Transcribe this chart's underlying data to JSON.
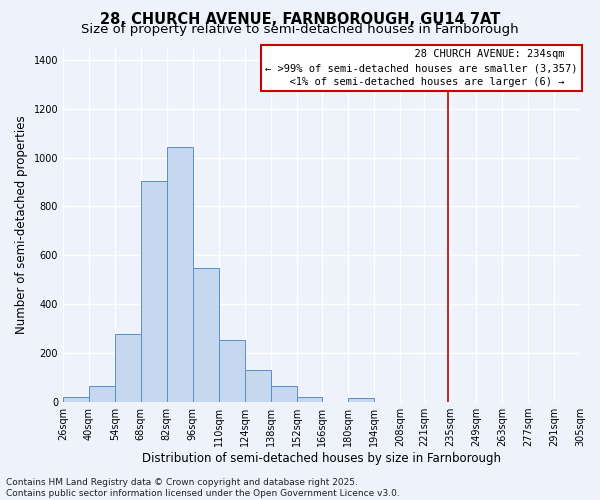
{
  "title_line1": "28, CHURCH AVENUE, FARNBOROUGH, GU14 7AT",
  "title_line2": "Size of property relative to semi-detached houses in Farnborough",
  "xlabel": "Distribution of semi-detached houses by size in Farnborough",
  "ylabel": "Number of semi-detached properties",
  "bar_edges": [
    26,
    40,
    54,
    68,
    82,
    96,
    110,
    124,
    138,
    152,
    166,
    180,
    194,
    208,
    221,
    235,
    249,
    263,
    277,
    291,
    305
  ],
  "bar_heights": [
    20,
    65,
    280,
    905,
    1045,
    550,
    255,
    130,
    65,
    20,
    0,
    15,
    0,
    0,
    0,
    0,
    0,
    0,
    0,
    0
  ],
  "bar_color": "#c5d8f0",
  "bar_edge_color": "#5b8fc7",
  "property_line_x": 234,
  "property_line_color": "#cc0000",
  "ylim": [
    0,
    1450
  ],
  "xlim": [
    26,
    305
  ],
  "yticks": [
    0,
    200,
    400,
    600,
    800,
    1000,
    1200,
    1400
  ],
  "xtick_labels": [
    "26sqm",
    "40sqm",
    "54sqm",
    "68sqm",
    "82sqm",
    "96sqm",
    "110sqm",
    "124sqm",
    "138sqm",
    "152sqm",
    "166sqm",
    "180sqm",
    "194sqm",
    "208sqm",
    "221sqm",
    "235sqm",
    "249sqm",
    "263sqm",
    "277sqm",
    "291sqm",
    "305sqm"
  ],
  "legend_title": "28 CHURCH AVENUE: 234sqm",
  "legend_line1": "← >99% of semi-detached houses are smaller (3,357)",
  "legend_line2": "<1% of semi-detached houses are larger (6) →",
  "footnote1": "Contains HM Land Registry data © Crown copyright and database right 2025.",
  "footnote2": "Contains public sector information licensed under the Open Government Licence v3.0.",
  "background_color": "#eef2fb",
  "grid_color": "#ffffff",
  "title_fontsize": 10.5,
  "subtitle_fontsize": 9.5,
  "tick_fontsize": 7,
  "label_fontsize": 8.5,
  "footnote_fontsize": 6.5,
  "legend_fontsize": 7.5
}
